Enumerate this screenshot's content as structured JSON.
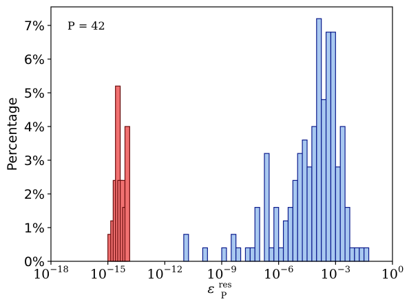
{
  "chart_data": {
    "type": "bar",
    "histogram": true,
    "x_scale": "log10",
    "xlim_exponent": [
      -18,
      0
    ],
    "ylim": [
      0,
      7.55
    ],
    "grid": false,
    "legend": "none",
    "bin_width_decades": 0.25,
    "annotation": "P = 42",
    "ylabel": "Percentage",
    "xlabel": "ε_P^res",
    "xlabel_main": "ε",
    "xlabel_sub": "P",
    "xlabel_sup": "res",
    "x_ticks": [
      {
        "base": "10",
        "exp": "−18",
        "value": -18
      },
      {
        "base": "10",
        "exp": "−15",
        "value": -15
      },
      {
        "base": "10",
        "exp": "−12",
        "value": -12
      },
      {
        "base": "10",
        "exp": "−9",
        "value": -9
      },
      {
        "base": "10",
        "exp": "−6",
        "value": -6
      },
      {
        "base": "10",
        "exp": "−3",
        "value": -3
      },
      {
        "base": "10",
        "exp": "0",
        "value": 0
      }
    ],
    "y_ticks": [
      {
        "label": "0%",
        "value": 0
      },
      {
        "label": "1%",
        "value": 1
      },
      {
        "label": "2%",
        "value": 2
      },
      {
        "label": "3%",
        "value": 3
      },
      {
        "label": "4%",
        "value": 4
      },
      {
        "label": "5%",
        "value": 5
      },
      {
        "label": "6%",
        "value": 6
      },
      {
        "label": "7%",
        "value": 7
      }
    ],
    "series": [
      {
        "color_fill": "#f07070",
        "color_edge": "#6b0d0d",
        "bins": [
          {
            "x": -15.0,
            "y": 0.8
          },
          {
            "x": -14.85,
            "y": 1.2
          },
          {
            "x": -14.72,
            "y": 2.4
          },
          {
            "x": -14.6,
            "y": 5.2
          },
          {
            "x": -14.48,
            "y": 2.4
          },
          {
            "x": -14.35,
            "y": 2.4
          },
          {
            "x": -14.22,
            "y": 1.6
          },
          {
            "x": -14.1,
            "y": 4.0
          }
        ]
      },
      {
        "color_fill": "#a8c8f0",
        "color_edge": "#0a1a8c",
        "bins": [
          {
            "x": -11.0,
            "y": 0.8
          },
          {
            "x": -10.0,
            "y": 0.4
          },
          {
            "x": -9.0,
            "y": 0.4
          },
          {
            "x": -8.5,
            "y": 0.8
          },
          {
            "x": -8.25,
            "y": 0.4
          },
          {
            "x": -7.75,
            "y": 0.4
          },
          {
            "x": -7.5,
            "y": 0.4
          },
          {
            "x": -7.25,
            "y": 1.6
          },
          {
            "x": -6.75,
            "y": 3.2
          },
          {
            "x": -6.5,
            "y": 0.4
          },
          {
            "x": -6.25,
            "y": 1.6
          },
          {
            "x": -6.0,
            "y": 0.4
          },
          {
            "x": -5.75,
            "y": 1.2
          },
          {
            "x": -5.5,
            "y": 1.6
          },
          {
            "x": -5.25,
            "y": 2.4
          },
          {
            "x": -5.0,
            "y": 3.2
          },
          {
            "x": -4.75,
            "y": 3.6
          },
          {
            "x": -4.5,
            "y": 2.8
          },
          {
            "x": -4.25,
            "y": 4.0
          },
          {
            "x": -4.0,
            "y": 7.2
          },
          {
            "x": -3.75,
            "y": 4.8
          },
          {
            "x": -3.5,
            "y": 6.8
          },
          {
            "x": -3.25,
            "y": 6.8
          },
          {
            "x": -3.0,
            "y": 2.8
          },
          {
            "x": -2.75,
            "y": 4.0
          },
          {
            "x": -2.5,
            "y": 1.6
          },
          {
            "x": -2.25,
            "y": 0.4
          },
          {
            "x": -2.0,
            "y": 0.4
          },
          {
            "x": -1.75,
            "y": 0.4
          },
          {
            "x": -1.5,
            "y": 0.4
          }
        ]
      }
    ]
  }
}
